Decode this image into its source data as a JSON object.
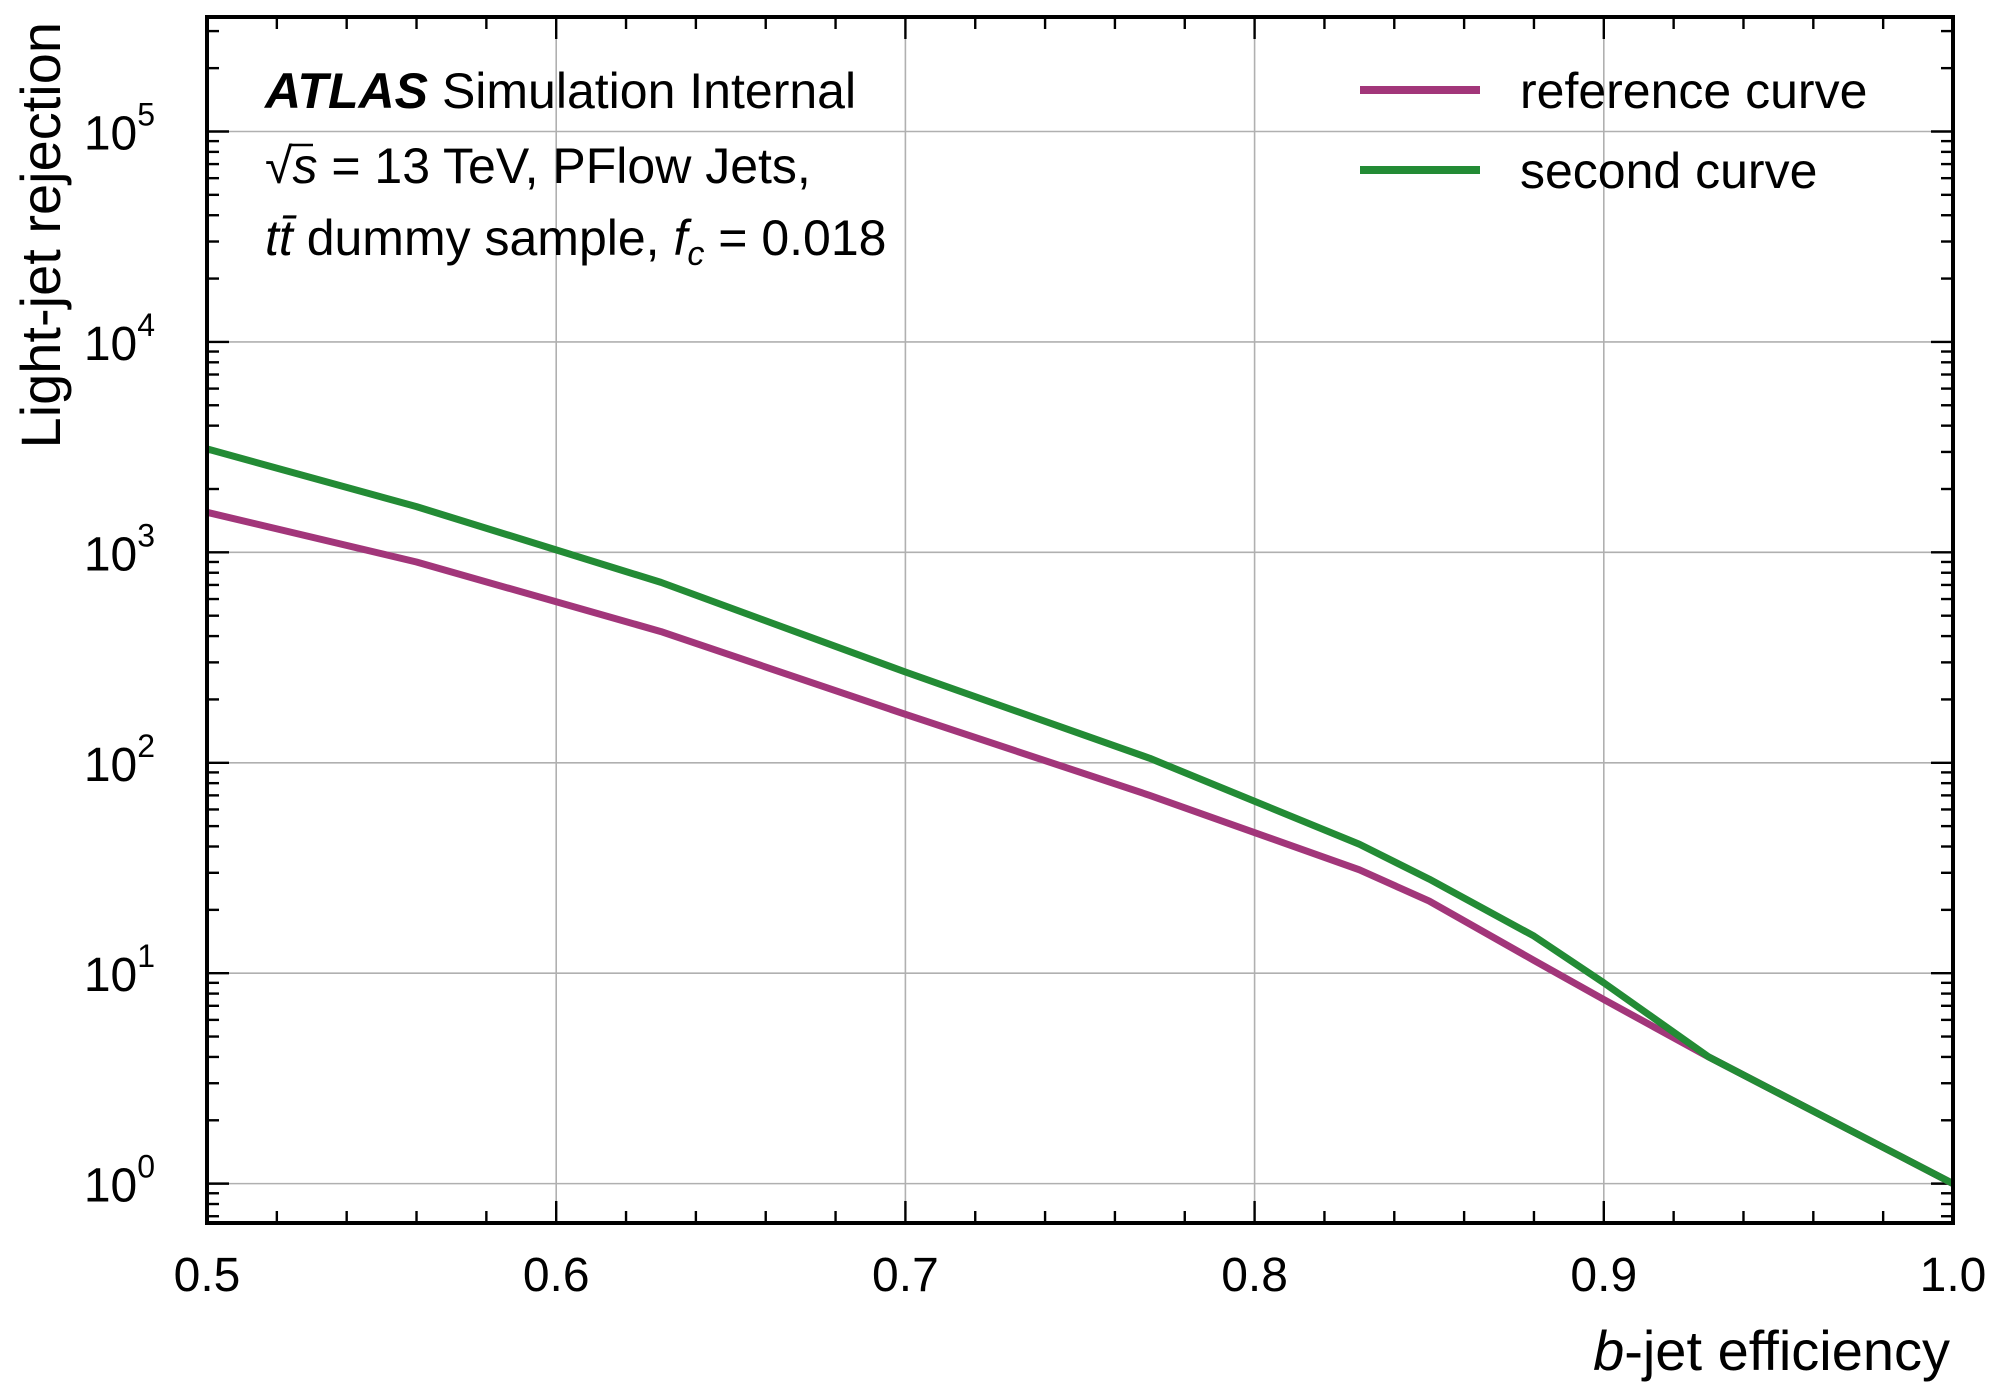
{
  "chart_data": {
    "type": "line",
    "xlabel_italic": "b",
    "xlabel_rest": "-jet efficiency",
    "ylabel": "Light-jet rejection",
    "xlim": [
      0.5,
      1.0
    ],
    "ylim": [
      0.65,
      350000
    ],
    "yscale": "log",
    "grid": true,
    "legend_position": "top-right",
    "x_ticks": [
      "0.5",
      "0.6",
      "0.7",
      "0.8",
      "0.9",
      "1.0"
    ],
    "y_ticks": [
      {
        "base": "10",
        "exp": "0"
      },
      {
        "base": "10",
        "exp": "1"
      },
      {
        "base": "10",
        "exp": "2"
      },
      {
        "base": "10",
        "exp": "3"
      },
      {
        "base": "10",
        "exp": "4"
      },
      {
        "base": "10",
        "exp": "5"
      }
    ],
    "annotation": {
      "atlas": "ATLAS",
      "status": "Simulation Internal",
      "sqrt": "√",
      "line2_s": "s",
      "line2_rest": " = 13 TeV, PFlow Jets,",
      "line3_tt": "tt̄",
      "line3_mid": " dummy sample, ",
      "line3_f": "f",
      "line3_sub": "c",
      "line3_end": " = 0.018"
    },
    "series": [
      {
        "name": "reference curve",
        "color": "#a2367a",
        "x": [
          0.5,
          0.56,
          0.63,
          0.7,
          0.77,
          0.83,
          0.85,
          0.88,
          0.9,
          0.93,
          1.0
        ],
        "y": [
          1550,
          900,
          420,
          170,
          70,
          31,
          22,
          11.5,
          7.5,
          4,
          1
        ]
      },
      {
        "name": "second curve",
        "color": "#238b35",
        "x": [
          0.5,
          0.56,
          0.63,
          0.7,
          0.77,
          0.83,
          0.85,
          0.88,
          0.9,
          0.93,
          1.0
        ],
        "y": [
          3100,
          1650,
          720,
          270,
          105,
          41,
          28,
          15,
          9,
          4,
          1
        ]
      }
    ]
  }
}
